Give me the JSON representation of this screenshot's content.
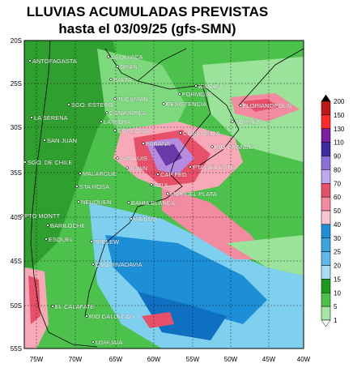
{
  "title": [
    "LLUVIAS ACUMULADAS PREVISTAS",
    "hasta el 03/09/25 (gfs-SMN)"
  ],
  "latitude_labels": [
    "20S",
    "25S",
    "30S",
    "35S",
    "40S",
    "45S",
    "50S",
    "55S"
  ],
  "longitude_labels": [
    "75W",
    "70W",
    "65W",
    "60W",
    "55W",
    "50W",
    "45W",
    "40W"
  ],
  "cities": [
    "ANTOFAGASTA",
    "LA QUIACA",
    "ORAN",
    "SALTA",
    "IGUAZU",
    "FORMOSA",
    "TUCUMAN",
    "SGO. ESTERO",
    "RESISTENCIA",
    "CATAMARCA",
    "LA RIOJA",
    "FLORIANOPOLIS",
    "LA SERENA",
    "TORRES",
    "CORDOBA",
    "CONCORDIA",
    "SAN JUAN",
    "PARANA",
    "RIO GRANDE",
    "SGO. DE CHILE",
    "SAN LUIS",
    "JUNIN",
    "PTA DEL ESTE",
    "CAP FED",
    "MALARGUE",
    "STA ROSA",
    "AZUL",
    "MAR DEL PLATA",
    "NEUQUEN",
    "BAHIA BLANCA",
    "PTO MONTT",
    "VIEDMA",
    "BARILOCHE",
    "ESQUEL",
    "TRELEW",
    "CDO RIVADAVIA",
    "EL CALAFATE",
    "RIO GALLEGOS",
    "USHUAIA"
  ],
  "colorbar_labels": [
    200,
    150,
    130,
    110,
    90,
    80,
    70,
    60,
    50,
    40,
    30,
    25,
    20,
    15,
    10,
    5,
    1
  ]
}
